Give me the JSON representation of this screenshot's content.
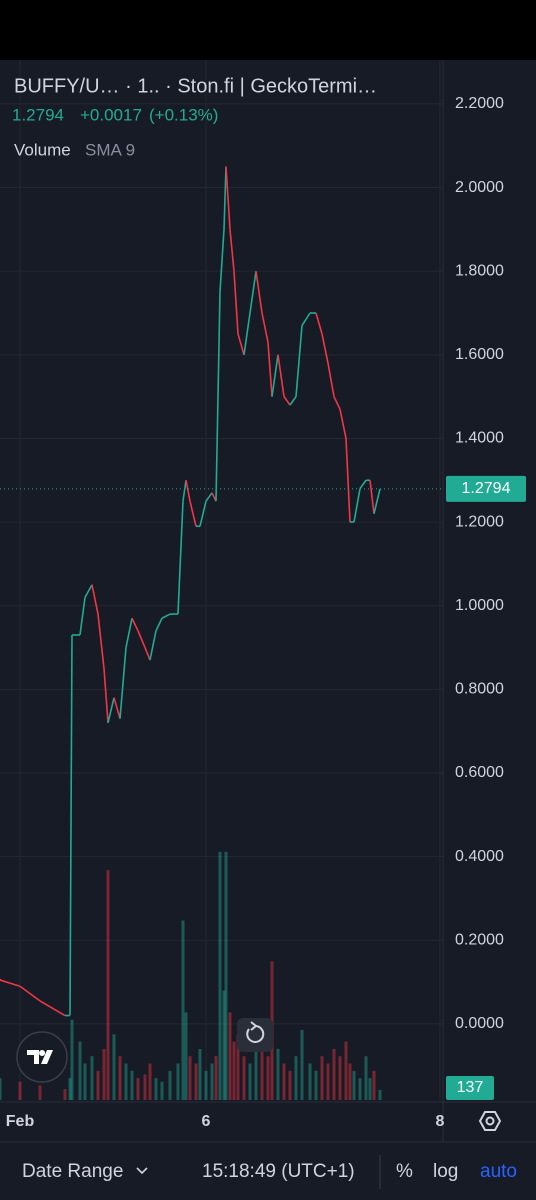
{
  "chart_data": {
    "type": "line",
    "title": "BUFFY/U…  · 1..  · Ston.fi | GeckoTermi…",
    "change": "+0.0017",
    "change_percent": "(+0.13%)",
    "indicator": "Volume",
    "indicator_param": "SMA 9",
    "x": [
      0,
      20,
      40,
      65,
      70,
      72,
      80,
      85,
      92,
      98,
      104,
      108,
      114,
      120,
      126,
      132,
      138,
      145,
      150,
      156,
      162,
      170,
      178,
      183,
      186,
      190,
      196,
      200,
      206,
      212,
      216,
      220,
      224,
      226,
      230,
      234,
      238,
      244,
      250,
      256,
      262,
      268,
      272,
      278,
      284,
      290,
      296,
      302,
      310,
      316,
      322,
      328,
      334,
      340,
      346,
      350,
      354,
      360,
      366,
      370,
      374,
      380
    ],
    "xlim": [
      0,
      443
    ],
    "xticks": [
      {
        "value": 20,
        "label": "Feb"
      },
      {
        "value": 206,
        "label": "6"
      },
      {
        "value": 440,
        "label": "8"
      }
    ],
    "ylim": [
      -0.182,
      2.305
    ],
    "yticks": [
      {
        "value": 2.2,
        "label": "2.2000"
      },
      {
        "value": 2,
        "label": "2.0000"
      },
      {
        "value": 1.8,
        "label": "1.8000"
      },
      {
        "value": 1.6,
        "label": "1.6000"
      },
      {
        "value": 1.4,
        "label": "1.4000"
      },
      {
        "value": 1.2,
        "label": "1.2000"
      },
      {
        "value": 1,
        "label": "1.0000"
      },
      {
        "value": 0.8,
        "label": "0.8000"
      },
      {
        "value": 0.6,
        "label": "0.6000"
      },
      {
        "value": 0.4,
        "label": "0.4000"
      },
      {
        "value": 0.2,
        "label": "0.2000"
      },
      {
        "value": 0,
        "label": "0.0000"
      }
    ],
    "y2lim": [
      0,
      14250
    ],
    "grid": true,
    "up_color": "#22ab94",
    "down_color": "#f23645",
    "series": [
      {
        "values": [
          0.105,
          0.09,
          0.055,
          0.02,
          0.02,
          0.93,
          0.93,
          1.02,
          1.05,
          0.98,
          0.85,
          0.72,
          0.78,
          0.73,
          0.9,
          0.97,
          0.94,
          0.9,
          0.87,
          0.94,
          0.97,
          0.98,
          0.98,
          1.25,
          1.3,
          1.25,
          1.19,
          1.19,
          1.25,
          1.27,
          1.25,
          1.75,
          1.9,
          2.05,
          1.9,
          1.8,
          1.65,
          1.6,
          1.7,
          1.8,
          1.7,
          1.63,
          1.5,
          1.6,
          1.5,
          1.48,
          1.5,
          1.67,
          1.7,
          1.7,
          1.65,
          1.58,
          1.5,
          1.47,
          1.4,
          1.2,
          1.2,
          1.28,
          1.3,
          1.3,
          1.22,
          1.2794
        ]
      },
      {
        "axis": "y2",
        "opacity": 0.45,
        "values": [
          300,
          250,
          200,
          150,
          300,
          1100,
          800,
          500,
          600,
          400,
          700,
          3150,
          900,
          600,
          500,
          400,
          300,
          350,
          500,
          300,
          250,
          400,
          500,
          2460,
          1200,
          600,
          500,
          700,
          400,
          500,
          600,
          3400,
          1500,
          3400,
          1200,
          800,
          900,
          600,
          500,
          700,
          800,
          600,
          1900,
          700,
          500,
          400,
          600,
          960,
          500,
          400,
          600,
          500,
          700,
          600,
          800,
          500,
          400,
          300,
          600,
          300,
          400,
          137
        ]
      }
    ],
    "price_line": {
      "value": 1.2794,
      "label": "1.2794"
    },
    "volume_line": {
      "value": 137,
      "label": "137"
    }
  },
  "toolbar": {
    "date_range": "Date Range",
    "time": "15:18:49 (UTC+1)",
    "percent": "%",
    "log": "log",
    "auto": "auto"
  }
}
